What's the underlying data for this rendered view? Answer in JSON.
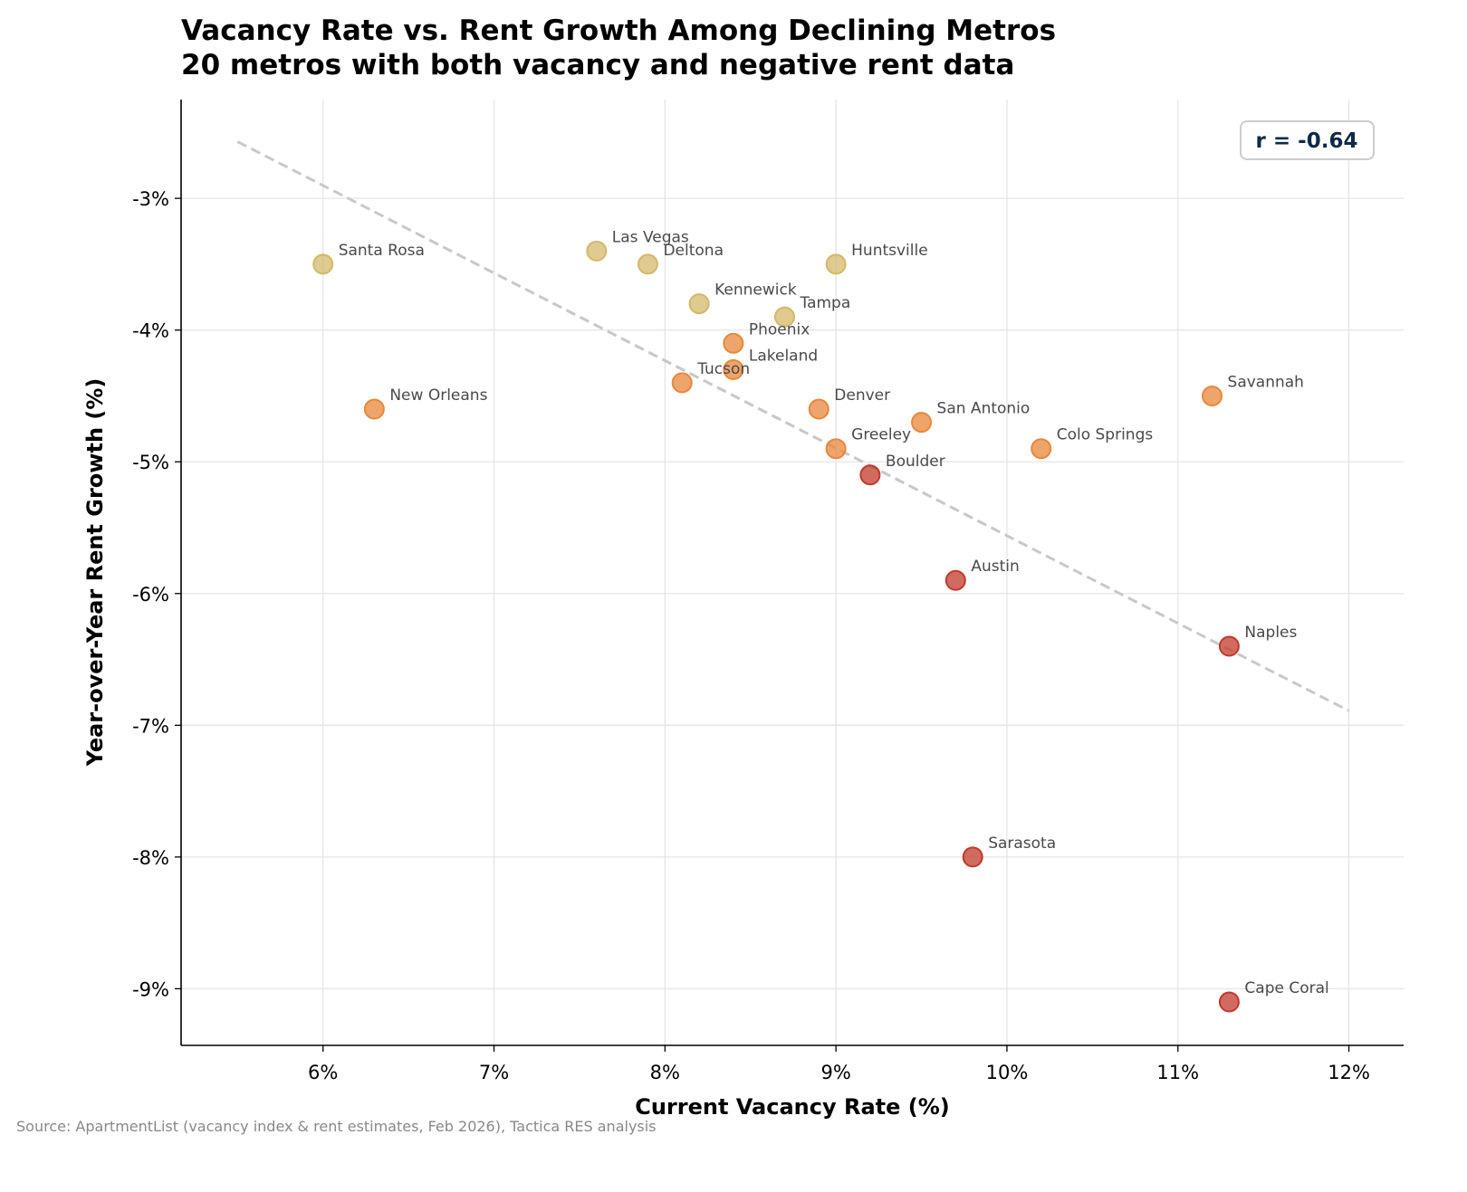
{
  "chart_data": {
    "type": "scatter",
    "title": "Vacancy Rate vs. Rent Growth Among Declining Metros",
    "subtitle": "20 metros with both vacancy and negative rent data",
    "xlabel": "Current Vacancy Rate (%)",
    "ylabel": "Year-over-Year Rent Growth (%)",
    "xlim": [
      5.17,
      12.32
    ],
    "ylim": [
      -9.43,
      -2.25
    ],
    "x_ticks": [
      6,
      7,
      8,
      9,
      10,
      11,
      12
    ],
    "x_tick_labels": [
      "6%",
      "7%",
      "8%",
      "9%",
      "10%",
      "11%",
      "12%"
    ],
    "y_ticks": [
      -3,
      -4,
      -5,
      -6,
      -7,
      -8,
      -9
    ],
    "y_tick_labels": [
      "-3%",
      "-4%",
      "-5%",
      "-6%",
      "-7%",
      "-8%",
      "-9%"
    ],
    "grid": true,
    "annotation": "r = -0.64",
    "trend_line": {
      "x": [
        5.5,
        12.0
      ],
      "y": [
        -2.57,
        -6.89
      ],
      "style": "dashed",
      "color": "#c8c8c8"
    },
    "colors": {
      "mild": "#d4b86a",
      "moderate": "#e8873a",
      "severe": "#c0392b"
    },
    "points": [
      {
        "label": "Santa Rosa",
        "x": 6.0,
        "y": -3.5,
        "group": "mild"
      },
      {
        "label": "Las Vegas",
        "x": 7.6,
        "y": -3.4,
        "group": "mild"
      },
      {
        "label": "Deltona",
        "x": 7.9,
        "y": -3.5,
        "group": "mild"
      },
      {
        "label": "Huntsville",
        "x": 9.0,
        "y": -3.5,
        "group": "mild"
      },
      {
        "label": "Kennewick",
        "x": 8.2,
        "y": -3.8,
        "group": "mild"
      },
      {
        "label": "Tampa",
        "x": 8.7,
        "y": -3.9,
        "group": "mild"
      },
      {
        "label": "Phoenix",
        "x": 8.4,
        "y": -4.1,
        "group": "moderate"
      },
      {
        "label": "Lakeland",
        "x": 8.4,
        "y": -4.3,
        "group": "moderate"
      },
      {
        "label": "Tucson",
        "x": 8.1,
        "y": -4.4,
        "group": "moderate"
      },
      {
        "label": "New Orleans",
        "x": 6.3,
        "y": -4.6,
        "group": "moderate"
      },
      {
        "label": "Denver",
        "x": 8.9,
        "y": -4.6,
        "group": "moderate"
      },
      {
        "label": "San Antonio",
        "x": 9.5,
        "y": -4.7,
        "group": "moderate"
      },
      {
        "label": "Greeley",
        "x": 9.0,
        "y": -4.9,
        "group": "moderate"
      },
      {
        "label": "Colo Springs",
        "x": 10.2,
        "y": -4.9,
        "group": "moderate"
      },
      {
        "label": "Savannah",
        "x": 11.2,
        "y": -4.5,
        "group": "moderate"
      },
      {
        "label": "Boulder",
        "x": 9.2,
        "y": -5.1,
        "group": "severe"
      },
      {
        "label": "Austin",
        "x": 9.7,
        "y": -5.9,
        "group": "severe"
      },
      {
        "label": "Naples",
        "x": 11.3,
        "y": -6.4,
        "group": "severe"
      },
      {
        "label": "Sarasota",
        "x": 9.8,
        "y": -8.0,
        "group": "severe"
      },
      {
        "label": "Cape Coral",
        "x": 11.3,
        "y": -9.1,
        "group": "severe"
      }
    ]
  },
  "source": "Source: ApartmentList (vacancy index & rent estimates, Feb 2026), Tactica RES analysis"
}
